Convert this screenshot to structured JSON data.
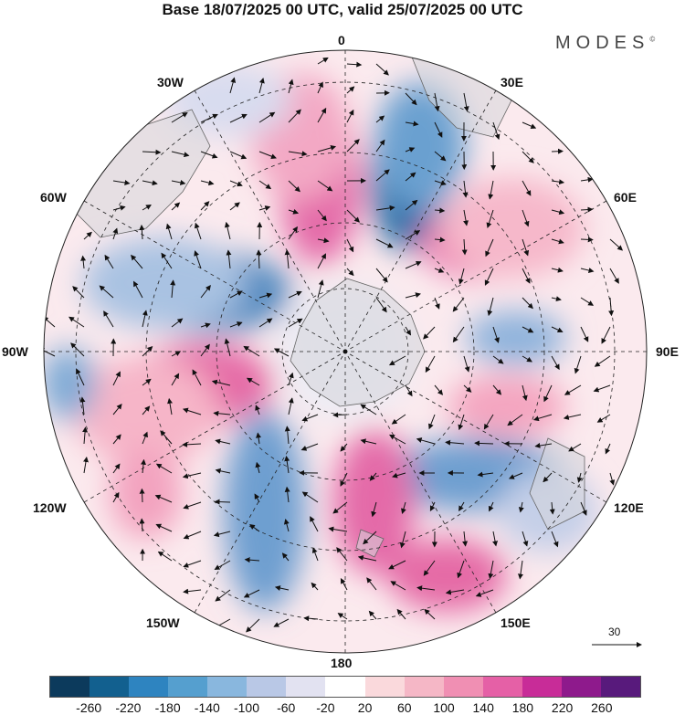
{
  "title": "Base 18/07/2025 00 UTC, valid 25/07/2025 00 UTC",
  "brand": "MODES",
  "brand_mark": "©",
  "labels": {
    "top": "0",
    "bottom": "180",
    "left": "90W",
    "right": "90E",
    "l30w": "30W",
    "l30e": "30E",
    "l60w": "60W",
    "l60e": "60E",
    "l120w": "120W",
    "l120e": "120E",
    "l150w": "150W",
    "l150e": "150E"
  },
  "vector_ref": "30",
  "colorbar": {
    "colors": [
      "#0c3a5c",
      "#12608f",
      "#2e84c0",
      "#559fcf",
      "#89b7de",
      "#b9c8e6",
      "#e2e2f1",
      "#ffffff",
      "#fad9dc",
      "#f5b7c6",
      "#f08fb3",
      "#e560a6",
      "#c82c98",
      "#8e1a8c",
      "#581a7c"
    ],
    "ticks": [
      "-260",
      "-220",
      "-180",
      "-140",
      "-100",
      "-60",
      "-20",
      "20",
      "60",
      "100",
      "140",
      "180",
      "220",
      "260"
    ]
  }
}
